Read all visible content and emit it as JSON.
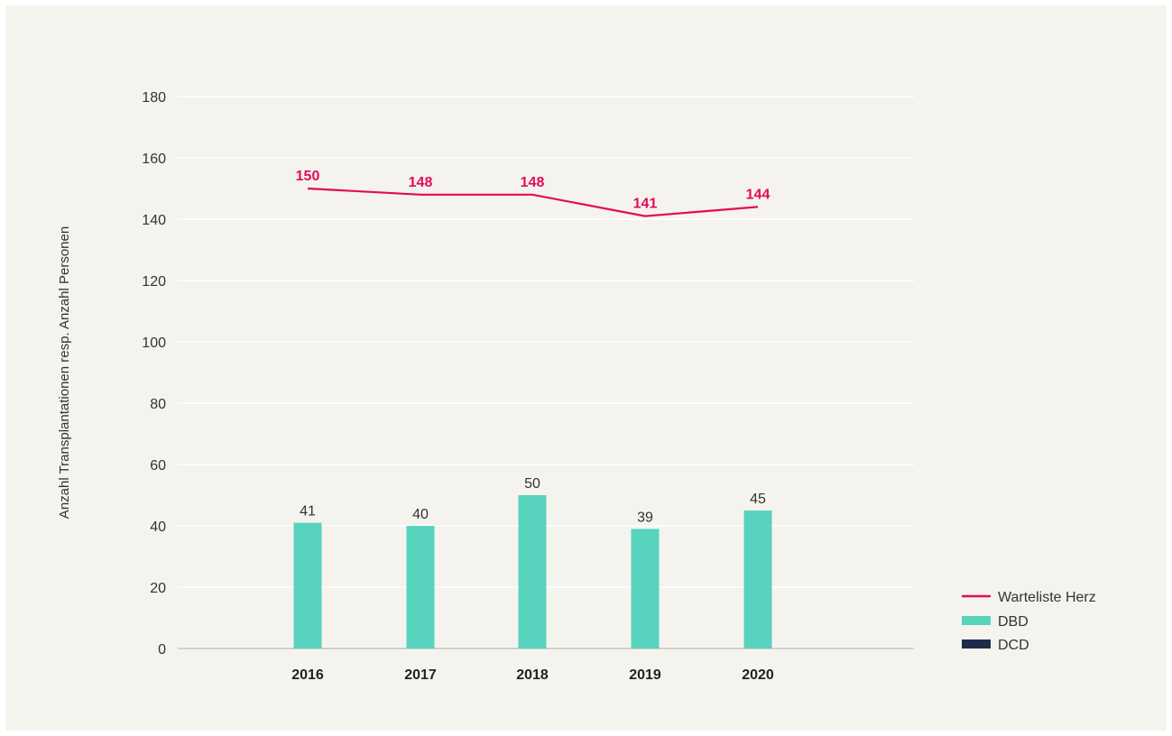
{
  "chart_data": {
    "type": "bar",
    "title": "",
    "xlabel": "",
    "ylabel": "Anzahl Transplantationen resp. Anzahl Personen",
    "categories": [
      "2016",
      "2017",
      "2018",
      "2019",
      "2020"
    ],
    "ylim": [
      0,
      180
    ],
    "yticks": [
      0,
      20,
      40,
      60,
      80,
      100,
      120,
      140,
      160,
      180
    ],
    "grid": true,
    "legend_position": "bottom-right",
    "series": [
      {
        "name": "Warteliste Herz",
        "kind": "line",
        "color": "#e30a5b",
        "values": [
          150,
          148,
          148,
          141,
          144
        ]
      },
      {
        "name": "DBD",
        "kind": "bar",
        "color": "#58d3bd",
        "values": [
          41,
          40,
          50,
          39,
          45
        ]
      },
      {
        "name": "DCD",
        "kind": "bar",
        "color": "#1c2e4a",
        "values": [
          0,
          0,
          0,
          0,
          0
        ]
      }
    ]
  }
}
